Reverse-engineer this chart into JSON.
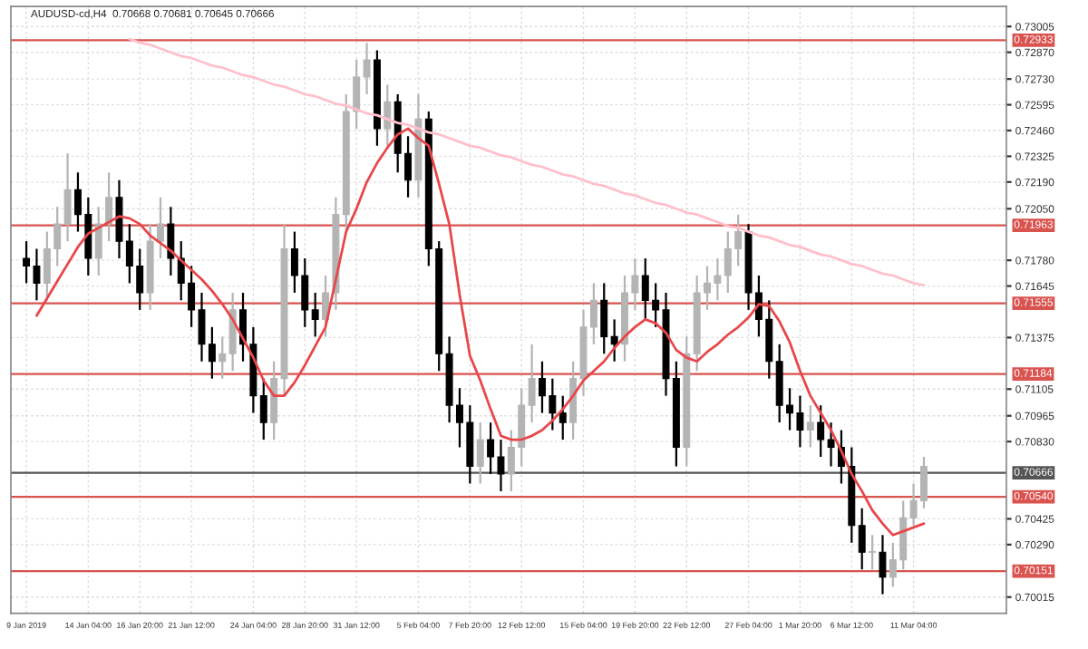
{
  "chart_data": {
    "type": "candlestick",
    "title": "AUDUSD-cd,H4  0.70668 0.70681 0.70645 0.70666",
    "categories": [
      "9 Jan 2019",
      null,
      null,
      null,
      null,
      null,
      "14 Jan 04:00",
      null,
      null,
      null,
      null,
      "16 Jan 20:00",
      null,
      null,
      null,
      null,
      "21 Jan 12:00",
      null,
      null,
      null,
      null,
      null,
      "24 Jan 04:00",
      null,
      null,
      null,
      null,
      "28 Jan 20:00",
      null,
      null,
      null,
      null,
      "31 Jan 12:00",
      null,
      null,
      null,
      null,
      null,
      "5 Feb 04:00",
      null,
      null,
      null,
      null,
      "7 Feb 20:00",
      null,
      null,
      null,
      null,
      "12 Feb 12:00",
      null,
      null,
      null,
      null,
      null,
      "15 Feb 04:00",
      null,
      null,
      null,
      null,
      "19 Feb 20:00",
      null,
      null,
      null,
      null,
      "22 Feb 12:00",
      null,
      null,
      null,
      null,
      null,
      "27 Feb 04:00",
      null,
      null,
      null,
      null,
      "1 Mar 20:00",
      null,
      null,
      null,
      null,
      "6 Mar 12:00",
      null,
      null,
      null,
      null,
      null,
      "11 Mar 04:00",
      null
    ],
    "ohlc": [
      [
        0.7179,
        0.7188,
        0.7166,
        0.7175
      ],
      [
        0.7175,
        0.7184,
        0.7157,
        0.7166
      ],
      [
        0.7166,
        0.7193,
        0.7157,
        0.7184
      ],
      [
        0.7184,
        0.7206,
        0.7175,
        0.7197
      ],
      [
        0.7197,
        0.7234,
        0.7188,
        0.7215
      ],
      [
        0.7215,
        0.7224,
        0.7193,
        0.7202
      ],
      [
        0.7202,
        0.7211,
        0.717,
        0.7179
      ],
      [
        0.7179,
        0.7206,
        0.717,
        0.7197
      ],
      [
        0.7197,
        0.7224,
        0.7188,
        0.7211
      ],
      [
        0.7211,
        0.722,
        0.7179,
        0.7188
      ],
      [
        0.7188,
        0.7197,
        0.7166,
        0.7175
      ],
      [
        0.7175,
        0.7184,
        0.7152,
        0.7161
      ],
      [
        0.7161,
        0.7197,
        0.7152,
        0.7188
      ],
      [
        0.7188,
        0.7211,
        0.7179,
        0.7197
      ],
      [
        0.7197,
        0.7206,
        0.717,
        0.7179
      ],
      [
        0.7179,
        0.7188,
        0.7157,
        0.7166
      ],
      [
        0.7166,
        0.7175,
        0.7143,
        0.7152
      ],
      [
        0.7152,
        0.7161,
        0.7125,
        0.7134
      ],
      [
        0.7134,
        0.7143,
        0.7116,
        0.7125
      ],
      [
        0.7125,
        0.7138,
        0.7116,
        0.7129
      ],
      [
        0.7129,
        0.7161,
        0.712,
        0.7152
      ],
      [
        0.7152,
        0.7161,
        0.7125,
        0.7134
      ],
      [
        0.7134,
        0.7143,
        0.7098,
        0.7107
      ],
      [
        0.7107,
        0.7116,
        0.7084,
        0.7093
      ],
      [
        0.7093,
        0.7125,
        0.7084,
        0.7116
      ],
      [
        0.7116,
        0.7197,
        0.7107,
        0.7184
      ],
      [
        0.7184,
        0.7193,
        0.7161,
        0.717
      ],
      [
        0.717,
        0.7179,
        0.7143,
        0.7152
      ],
      [
        0.7152,
        0.7161,
        0.7138,
        0.7147
      ],
      [
        0.7147,
        0.717,
        0.7138,
        0.7161
      ],
      [
        0.7161,
        0.7211,
        0.7152,
        0.7202
      ],
      [
        0.7202,
        0.7265,
        0.7193,
        0.7256
      ],
      [
        0.7256,
        0.7283,
        0.7247,
        0.7274
      ],
      [
        0.7274,
        0.7292,
        0.7265,
        0.7283
      ],
      [
        0.7283,
        0.7288,
        0.7238,
        0.7247
      ],
      [
        0.7247,
        0.727,
        0.7238,
        0.7261
      ],
      [
        0.7261,
        0.7265,
        0.7224,
        0.7234
      ],
      [
        0.7234,
        0.7243,
        0.7211,
        0.722
      ],
      [
        0.722,
        0.7265,
        0.7211,
        0.7252
      ],
      [
        0.7252,
        0.7256,
        0.7175,
        0.7184
      ],
      [
        0.7184,
        0.7188,
        0.712,
        0.7129
      ],
      [
        0.7129,
        0.7138,
        0.7093,
        0.7102
      ],
      [
        0.7102,
        0.7111,
        0.708,
        0.7093
      ],
      [
        0.7093,
        0.7102,
        0.7061,
        0.707
      ],
      [
        0.707,
        0.7093,
        0.7061,
        0.7084
      ],
      [
        0.7084,
        0.7093,
        0.7066,
        0.7075
      ],
      [
        0.7075,
        0.7084,
        0.7057,
        0.7066
      ],
      [
        0.7066,
        0.7089,
        0.7057,
        0.708
      ],
      [
        0.708,
        0.7111,
        0.707,
        0.7102
      ],
      [
        0.7102,
        0.7134,
        0.7093,
        0.7116
      ],
      [
        0.7116,
        0.7125,
        0.7098,
        0.7107
      ],
      [
        0.7107,
        0.7116,
        0.7089,
        0.7098
      ],
      [
        0.7098,
        0.7107,
        0.7084,
        0.7093
      ],
      [
        0.7093,
        0.7125,
        0.7084,
        0.7116
      ],
      [
        0.7116,
        0.7152,
        0.7107,
        0.7143
      ],
      [
        0.7143,
        0.7166,
        0.7134,
        0.7157
      ],
      [
        0.7157,
        0.7166,
        0.7129,
        0.7138
      ],
      [
        0.7138,
        0.7147,
        0.7125,
        0.7134
      ],
      [
        0.7134,
        0.717,
        0.7125,
        0.7161
      ],
      [
        0.7161,
        0.7179,
        0.7152,
        0.717
      ],
      [
        0.717,
        0.7179,
        0.7147,
        0.7157
      ],
      [
        0.7157,
        0.7166,
        0.7143,
        0.7152
      ],
      [
        0.7152,
        0.7161,
        0.7107,
        0.7116
      ],
      [
        0.7116,
        0.7125,
        0.707,
        0.708
      ],
      [
        0.708,
        0.7138,
        0.707,
        0.7129
      ],
      [
        0.7129,
        0.717,
        0.712,
        0.7161
      ],
      [
        0.7161,
        0.7175,
        0.7152,
        0.7166
      ],
      [
        0.7166,
        0.7179,
        0.7157,
        0.717
      ],
      [
        0.717,
        0.7193,
        0.7161,
        0.7184
      ],
      [
        0.7184,
        0.7202,
        0.7175,
        0.7193
      ],
      [
        0.7193,
        0.7197,
        0.7152,
        0.7161
      ],
      [
        0.7161,
        0.717,
        0.7138,
        0.7147
      ],
      [
        0.7147,
        0.7157,
        0.7116,
        0.7125
      ],
      [
        0.7125,
        0.7134,
        0.7093,
        0.7102
      ],
      [
        0.7102,
        0.7111,
        0.7089,
        0.7098
      ],
      [
        0.7098,
        0.7107,
        0.708,
        0.7089
      ],
      [
        0.7089,
        0.7102,
        0.708,
        0.7093
      ],
      [
        0.7093,
        0.7102,
        0.7075,
        0.7084
      ],
      [
        0.7084,
        0.7093,
        0.707,
        0.708
      ],
      [
        0.708,
        0.7089,
        0.7061,
        0.707
      ],
      [
        0.707,
        0.708,
        0.703,
        0.7039
      ],
      [
        0.7039,
        0.7048,
        0.7016,
        0.7025
      ],
      [
        0.7025,
        0.7034,
        0.7016,
        0.7025
      ],
      [
        0.7025,
        0.7034,
        0.7003,
        0.7012
      ],
      [
        0.7012,
        0.703,
        0.7007,
        0.7021
      ],
      [
        0.7021,
        0.7052,
        0.7016,
        0.7043
      ],
      [
        0.7043,
        0.7061,
        0.7039,
        0.7052
      ],
      [
        0.7052,
        0.7075,
        0.7048,
        0.707
      ]
    ],
    "colors": [
      "#000000",
      "#000000",
      "#b4b4b4",
      "#b4b4b4",
      "#b4b4b4",
      "#000000",
      "#000000",
      "#b4b4b4",
      "#b4b4b4",
      "#000000",
      "#000000",
      "#000000",
      "#b4b4b4",
      "#b4b4b4",
      "#000000",
      "#000000",
      "#000000",
      "#000000",
      "#000000",
      "#b4b4b4",
      "#b4b4b4",
      "#000000",
      "#000000",
      "#000000",
      "#b4b4b4",
      "#b4b4b4",
      "#000000",
      "#000000",
      "#000000",
      "#b4b4b4",
      "#b4b4b4",
      "#b4b4b4",
      "#b4b4b4",
      "#b4b4b4",
      "#000000",
      "#b4b4b4",
      "#000000",
      "#000000",
      "#b4b4b4",
      "#000000",
      "#000000",
      "#000000",
      "#000000",
      "#000000",
      "#b4b4b4",
      "#000000",
      "#000000",
      "#b4b4b4",
      "#b4b4b4",
      "#b4b4b4",
      "#000000",
      "#000000",
      "#000000",
      "#b4b4b4",
      "#b4b4b4",
      "#b4b4b4",
      "#000000",
      "#000000",
      "#b4b4b4",
      "#b4b4b4",
      "#000000",
      "#000000",
      "#000000",
      "#000000",
      "#b4b4b4",
      "#b4b4b4",
      "#b4b4b4",
      "#b4b4b4",
      "#b4b4b4",
      "#b4b4b4",
      "#000000",
      "#000000",
      "#000000",
      "#000000",
      "#000000",
      "#000000",
      "#b4b4b4",
      "#000000",
      "#000000",
      "#000000",
      "#000000",
      "#000000",
      "#b4b4b4",
      "#000000",
      "#b4b4b4",
      "#b4b4b4",
      "#b4b4b4",
      "#b4b4b4"
    ],
    "series": [
      {
        "type": "line",
        "color": "#e8474a",
        "values": [
          null,
          0.7149,
          0.7158,
          0.7167,
          0.7176,
          0.7185,
          0.7192,
          0.7195,
          0.7198,
          0.7201,
          0.72,
          0.7197,
          0.7191,
          0.7187,
          0.7183,
          0.7178,
          0.7173,
          0.7168,
          0.7162,
          0.7155,
          0.7147,
          0.7137,
          0.7127,
          0.7115,
          0.7107,
          0.7107,
          0.7114,
          0.7123,
          0.7133,
          0.7143,
          0.7168,
          0.7193,
          0.7205,
          0.7219,
          0.7229,
          0.7237,
          0.7244,
          0.7247,
          0.7242,
          0.7238,
          0.7218,
          0.7197,
          0.716,
          0.7128,
          0.7115,
          0.71,
          0.7086,
          0.7084,
          0.7084,
          0.7086,
          0.7089,
          0.7094,
          0.71,
          0.7107,
          0.7115,
          0.712,
          0.7125,
          0.7132,
          0.7138,
          0.7143,
          0.7147,
          0.7145,
          0.714,
          0.7131,
          0.7127,
          0.7125,
          0.713,
          0.7134,
          0.7139,
          0.7143,
          0.7148,
          0.7155,
          0.7154,
          0.7146,
          0.7135,
          0.712,
          0.7107,
          0.7098,
          0.7089,
          0.7078,
          0.7066,
          0.7057,
          0.7047,
          0.704,
          0.7034,
          0.7036,
          0.7038,
          0.704
        ]
      },
      {
        "type": "line",
        "color": "#ffc0cb",
        "values": [
          null,
          null,
          null,
          null,
          null,
          null,
          null,
          null,
          null,
          null,
          0.7294,
          0.7292,
          0.7291,
          0.7289,
          0.7287,
          0.7285,
          0.7284,
          0.7282,
          0.728,
          0.7279,
          0.7277,
          0.7275,
          0.7274,
          0.7272,
          0.727,
          0.7269,
          0.7267,
          0.7265,
          0.7264,
          0.7262,
          0.726,
          0.7259,
          0.7257,
          0.7255,
          0.7254,
          0.7252,
          0.725,
          0.7249,
          0.7247,
          0.7245,
          0.7244,
          0.7242,
          0.724,
          0.7238,
          0.7237,
          0.7235,
          0.7233,
          0.7232,
          0.723,
          0.7228,
          0.7227,
          0.7225,
          0.7223,
          0.7222,
          0.722,
          0.7218,
          0.7217,
          0.7215,
          0.7213,
          0.7212,
          0.721,
          0.7208,
          0.7207,
          0.7205,
          0.7203,
          0.7202,
          0.72,
          0.7198,
          0.7196,
          0.7195,
          0.7193,
          0.7191,
          0.719,
          0.7188,
          0.7186,
          0.7185,
          0.7183,
          0.7181,
          0.718,
          0.7178,
          0.7176,
          0.7175,
          0.7173,
          0.7171,
          0.717,
          0.7168,
          0.7166,
          0.7165
        ]
      }
    ],
    "ref_lines": [
      {
        "axis": "y",
        "value": 0.72933,
        "label": "0.72933",
        "color": "#d9534f"
      },
      {
        "axis": "y",
        "value": 0.71963,
        "label": "0.71963",
        "color": "#d9534f"
      },
      {
        "axis": "y",
        "value": 0.71555,
        "label": "0.71555",
        "color": "#d9534f"
      },
      {
        "axis": "y",
        "value": 0.71184,
        "label": "0.71184",
        "color": "#d9534f"
      },
      {
        "axis": "y",
        "value": 0.70666,
        "label": "0.70666",
        "color": "#555555"
      },
      {
        "axis": "y",
        "value": 0.7054,
        "label": "0.70540",
        "color": "#d9534f"
      },
      {
        "axis": "y",
        "value": 0.70151,
        "label": "0.70151",
        "color": "#d9534f"
      }
    ],
    "ylim": [
      0.6993,
      0.7311
    ],
    "yticks": [
      {
        "value": 0.73005,
        "label": "0.73005"
      },
      {
        "value": 0.7287,
        "label": "0.72870"
      },
      {
        "value": 0.7273,
        "label": "0.72730"
      },
      {
        "value": 0.72595,
        "label": "0.72595"
      },
      {
        "value": 0.7246,
        "label": "0.72460"
      },
      {
        "value": 0.72325,
        "label": "0.72325"
      },
      {
        "value": 0.7219,
        "label": "0.72190"
      },
      {
        "value": 0.7205,
        "label": "0.72050"
      },
      {
        "value": 0.7178,
        "label": "0.71780"
      },
      {
        "value": 0.71645,
        "label": "0.71645"
      },
      {
        "value": 0.71375,
        "label": "0.71375"
      },
      {
        "value": 0.71105,
        "label": "0.71105"
      },
      {
        "value": 0.70965,
        "label": "0.70965"
      },
      {
        "value": 0.7083,
        "label": "0.70830"
      },
      {
        "value": 0.70425,
        "label": "0.70425"
      },
      {
        "value": 0.7029,
        "label": "0.70290"
      },
      {
        "value": 0.70015,
        "label": "0.70015"
      }
    ],
    "grid": true
  }
}
